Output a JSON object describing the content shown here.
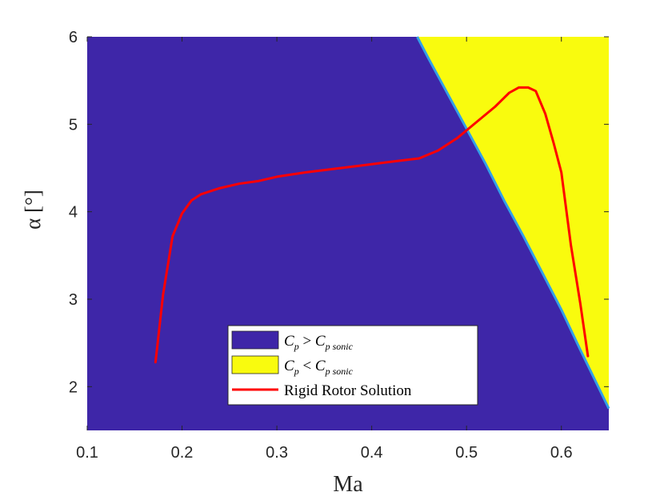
{
  "chart_data": {
    "type": "contour-region-with-line",
    "title": "",
    "xlabel": "Ma",
    "ylabel": "α [°]",
    "xlim": [
      0.1,
      0.65
    ],
    "ylim": [
      1.5,
      6.0
    ],
    "xticks": [
      "0.1",
      "0.2",
      "0.3",
      "0.4",
      "0.5",
      "0.6"
    ],
    "yticks": [
      "2",
      "3",
      "4",
      "5",
      "6"
    ],
    "grid": false,
    "legend_position": "bottom-center",
    "regions": [
      {
        "name": "Cp > Cp sonic",
        "color": "#3E26A8"
      },
      {
        "name": "Cp < Cp sonic",
        "color": "#F9FB0E",
        "boundary": {
          "x": [
            0.448,
            0.46,
            0.48,
            0.5,
            0.52,
            0.54,
            0.56,
            0.58,
            0.6,
            0.62,
            0.65
          ],
          "y": [
            6.0,
            5.75,
            5.35,
            4.95,
            4.55,
            4.12,
            3.72,
            3.3,
            2.88,
            2.42,
            1.75
          ]
        }
      }
    ],
    "series": [
      {
        "name": "Rigid Rotor Solution",
        "color": "#FF0000",
        "x": [
          0.172,
          0.18,
          0.19,
          0.2,
          0.21,
          0.22,
          0.24,
          0.26,
          0.28,
          0.3,
          0.33,
          0.36,
          0.39,
          0.42,
          0.45,
          0.47,
          0.49,
          0.51,
          0.53,
          0.545,
          0.555,
          0.565,
          0.573,
          0.583,
          0.592,
          0.6,
          0.61,
          0.62,
          0.628
        ],
        "y": [
          2.28,
          3.05,
          3.72,
          3.98,
          4.13,
          4.2,
          4.27,
          4.32,
          4.35,
          4.4,
          4.45,
          4.49,
          4.53,
          4.57,
          4.61,
          4.7,
          4.84,
          5.02,
          5.2,
          5.36,
          5.42,
          5.42,
          5.38,
          5.12,
          4.78,
          4.45,
          3.62,
          2.95,
          2.35
        ]
      }
    ],
    "legend": [
      {
        "label_main": "C",
        "sub": "p",
        "op": ">",
        "label_main2": "C",
        "sub2": "p sonic",
        "color": "#3E26A8",
        "kind": "patch"
      },
      {
        "label_main": "C",
        "sub": "p",
        "op": "<",
        "label_main2": "C",
        "sub2": "p sonic",
        "color": "#F9FB0E",
        "kind": "patch"
      },
      {
        "label": "Rigid Rotor Solution",
        "color": "#FF0000",
        "kind": "line"
      }
    ],
    "colors": {
      "axis": "#262626",
      "edge": "#33A0E8"
    }
  }
}
